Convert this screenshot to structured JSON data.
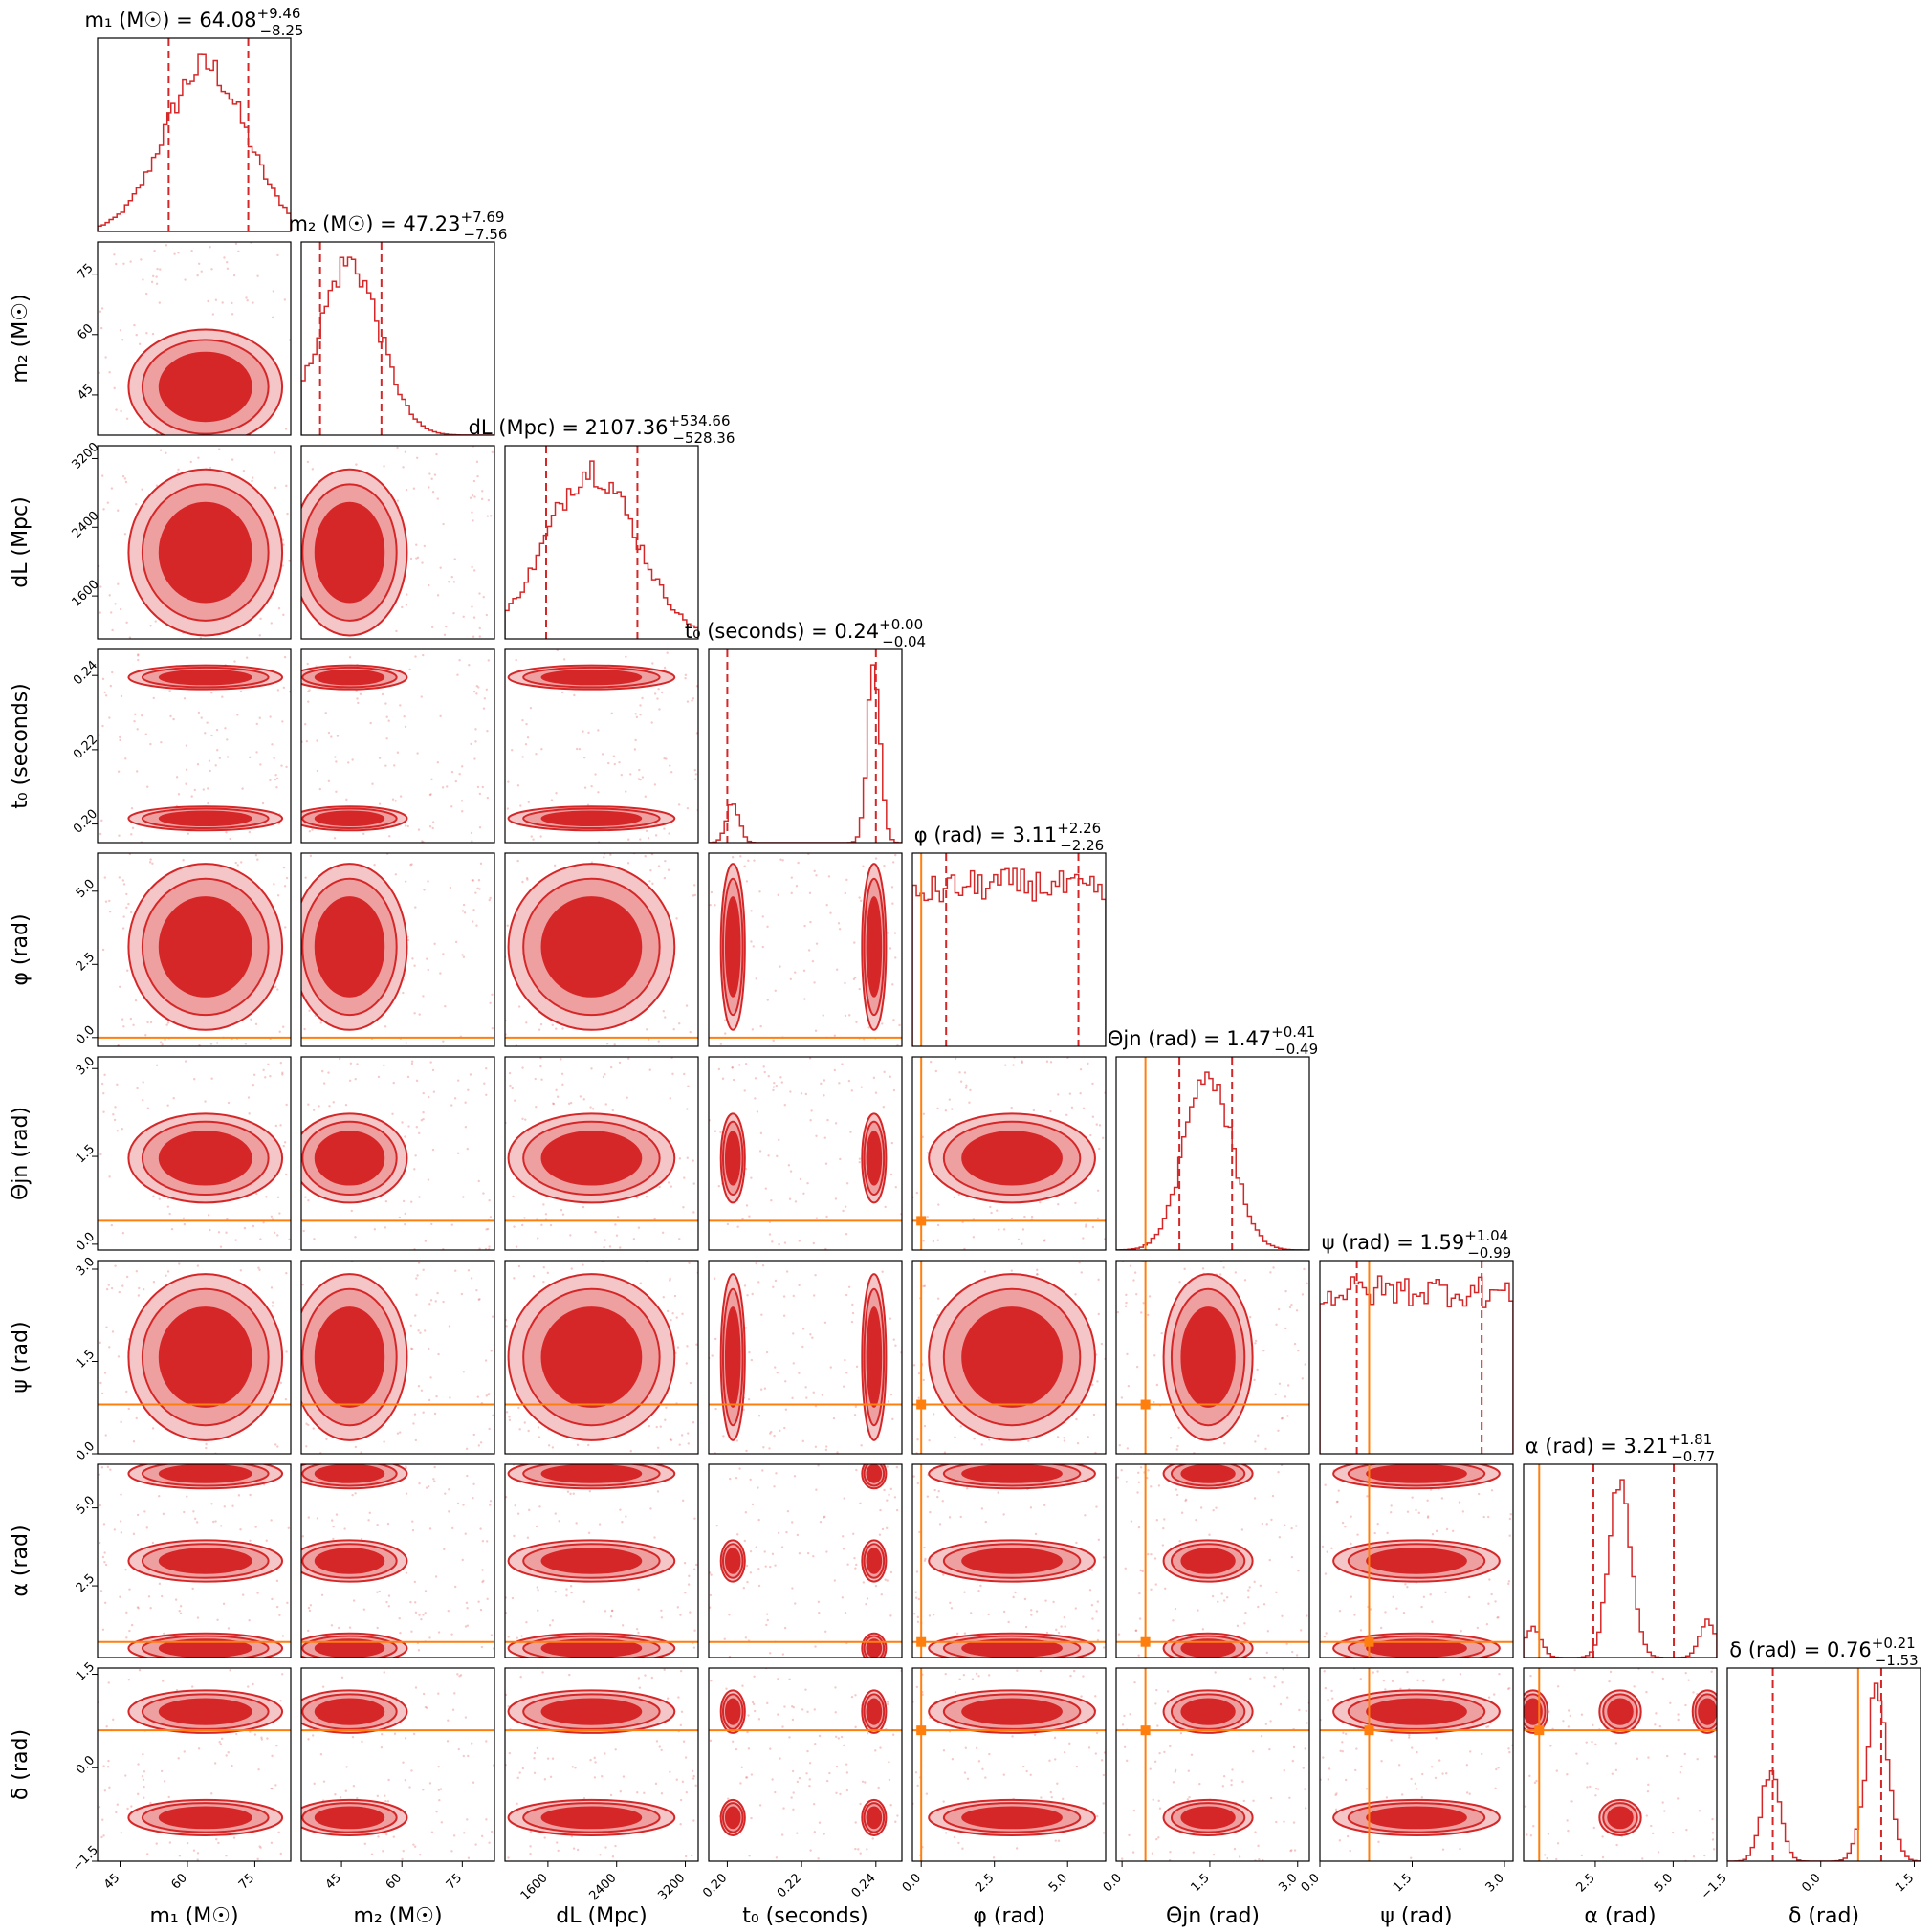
{
  "chart_data": {
    "type": "corner",
    "colors": {
      "posterior": "#d62728",
      "posterior_light": "#eea0a1",
      "truth": "#ff7f0e"
    },
    "parameters": [
      {
        "key": "m1",
        "label": "m₁ (M☉)",
        "median": 64.08,
        "plus": 9.46,
        "minus": 8.25,
        "range": [
          40,
          83
        ],
        "ticks": [
          45,
          60,
          75
        ],
        "title_name": "m₁ (M☉)",
        "title_value": "64.08",
        "title_plus": "+9.46",
        "title_minus": "−8.25"
      },
      {
        "key": "m2",
        "label": "m₂ (M☉)",
        "median": 47.23,
        "plus": 7.69,
        "minus": 7.56,
        "range": [
          35,
          83
        ],
        "ticks": [
          45,
          60,
          75
        ],
        "title_name": "m₂ (M☉)",
        "title_value": "47.23",
        "title_plus": "+7.69",
        "title_minus": "−7.56"
      },
      {
        "key": "dL",
        "label": "dL (Mpc)",
        "median": 2107.36,
        "plus": 534.66,
        "minus": 528.36,
        "range": [
          1100,
          3350
        ],
        "ticks": [
          1600,
          2400,
          3200
        ],
        "title_name": "dL (Mpc)",
        "title_value": "2107.36",
        "title_plus": "+534.66",
        "title_minus": "−528.36"
      },
      {
        "key": "t0",
        "label": "t₀ (seconds)",
        "median": 0.24,
        "plus": 0.0,
        "minus": 0.04,
        "range": [
          0.195,
          0.247
        ],
        "ticks": [
          0.2,
          0.22,
          0.24
        ],
        "title_name": "t₀ (seconds)",
        "title_value": "0.24",
        "title_plus": "+0.00",
        "title_minus": "−0.04"
      },
      {
        "key": "phi",
        "label": "φ (rad)",
        "median": 3.11,
        "plus": 2.26,
        "minus": 2.26,
        "range": [
          -0.3,
          6.3
        ],
        "ticks": [
          0.0,
          2.5,
          5.0
        ],
        "truth": 0.0,
        "title_name": "φ (rad)",
        "title_value": "3.11",
        "title_plus": "+2.26",
        "title_minus": "−2.26"
      },
      {
        "key": "theta",
        "label": "Θjn (rad)",
        "median": 1.47,
        "plus": 0.41,
        "minus": 0.49,
        "range": [
          -0.1,
          3.2
        ],
        "ticks": [
          0.0,
          1.5,
          3.0
        ],
        "truth": 0.4,
        "title_name": "Θjn (rad)",
        "title_value": "1.47",
        "title_plus": "+0.41",
        "title_minus": "−0.49"
      },
      {
        "key": "psi",
        "label": "ψ (rad)",
        "median": 1.59,
        "plus": 1.04,
        "minus": 0.99,
        "range": [
          0,
          3.14
        ],
        "ticks": [
          0.0,
          1.5,
          3.0
        ],
        "truth": 0.8,
        "title_name": "ψ (rad)",
        "title_value": "1.59",
        "title_plus": "+1.04",
        "title_minus": "−0.99"
      },
      {
        "key": "alpha",
        "label": "α (rad)",
        "median": 3.21,
        "plus": 1.81,
        "minus": 0.77,
        "range": [
          0.2,
          6.4
        ],
        "ticks": [
          2.5,
          5.0
        ],
        "truth": 0.7,
        "title_name": "α (rad)",
        "title_value": "3.21",
        "title_plus": "+1.81",
        "title_minus": "−0.77"
      },
      {
        "key": "delta",
        "label": "δ (rad)",
        "median": 0.76,
        "plus": 0.21,
        "minus": 1.53,
        "range": [
          -1.5,
          1.6
        ],
        "ticks": [
          -1.5,
          0.0,
          1.5
        ],
        "truth": 0.6,
        "title_name": "δ (rad)",
        "title_value": "0.76",
        "title_plus": "+0.21",
        "title_minus": "−1.53"
      }
    ],
    "tick_labels": {
      "m1": [
        "45",
        "60",
        "75"
      ],
      "m2": [
        "45",
        "60",
        "75"
      ],
      "dL": [
        "1600",
        "2400",
        "3200"
      ],
      "t0": [
        "0.20",
        "0.22",
        "0.24"
      ],
      "phi": [
        "0.0",
        "2.5",
        "5.0"
      ],
      "theta": [
        "0.0",
        "1.5",
        "3.0"
      ],
      "psi": [
        "0.0",
        "1.5",
        "3.0"
      ],
      "alpha": [
        "2.5",
        "5.0"
      ],
      "delta": [
        "−1.5",
        "0.0",
        "1.5"
      ]
    },
    "modes": {
      "m1": [
        {
          "w": 1,
          "mu": 64,
          "sd": 9
        }
      ],
      "m2": [
        {
          "w": 1,
          "mu": 47,
          "sd": 7.5
        }
      ],
      "dL": [
        {
          "w": 1,
          "mu": 2107,
          "sd": 520
        }
      ],
      "t0": [
        {
          "w": 0.82,
          "mu": 0.2395,
          "sd": 0.0017
        },
        {
          "w": 0.18,
          "mu": 0.2015,
          "sd": 0.0017
        }
      ],
      "phi": [
        {
          "w": 1,
          "mu": 3.1,
          "sd": 9
        }
      ],
      "theta": [
        {
          "w": 1,
          "mu": 1.47,
          "sd": 0.4
        }
      ],
      "psi": [
        {
          "w": 1,
          "mu": 1.57,
          "sd": 8
        }
      ],
      "alpha": [
        {
          "w": 0.78,
          "mu": 3.3,
          "sd": 0.35
        },
        {
          "w": 0.12,
          "mu": 6.1,
          "sd": 0.25
        },
        {
          "w": 0.1,
          "mu": 0.5,
          "sd": 0.25
        }
      ],
      "delta": [
        {
          "w": 0.68,
          "mu": 0.9,
          "sd": 0.18
        },
        {
          "w": 0.32,
          "mu": -0.8,
          "sd": 0.15
        }
      ]
    }
  }
}
